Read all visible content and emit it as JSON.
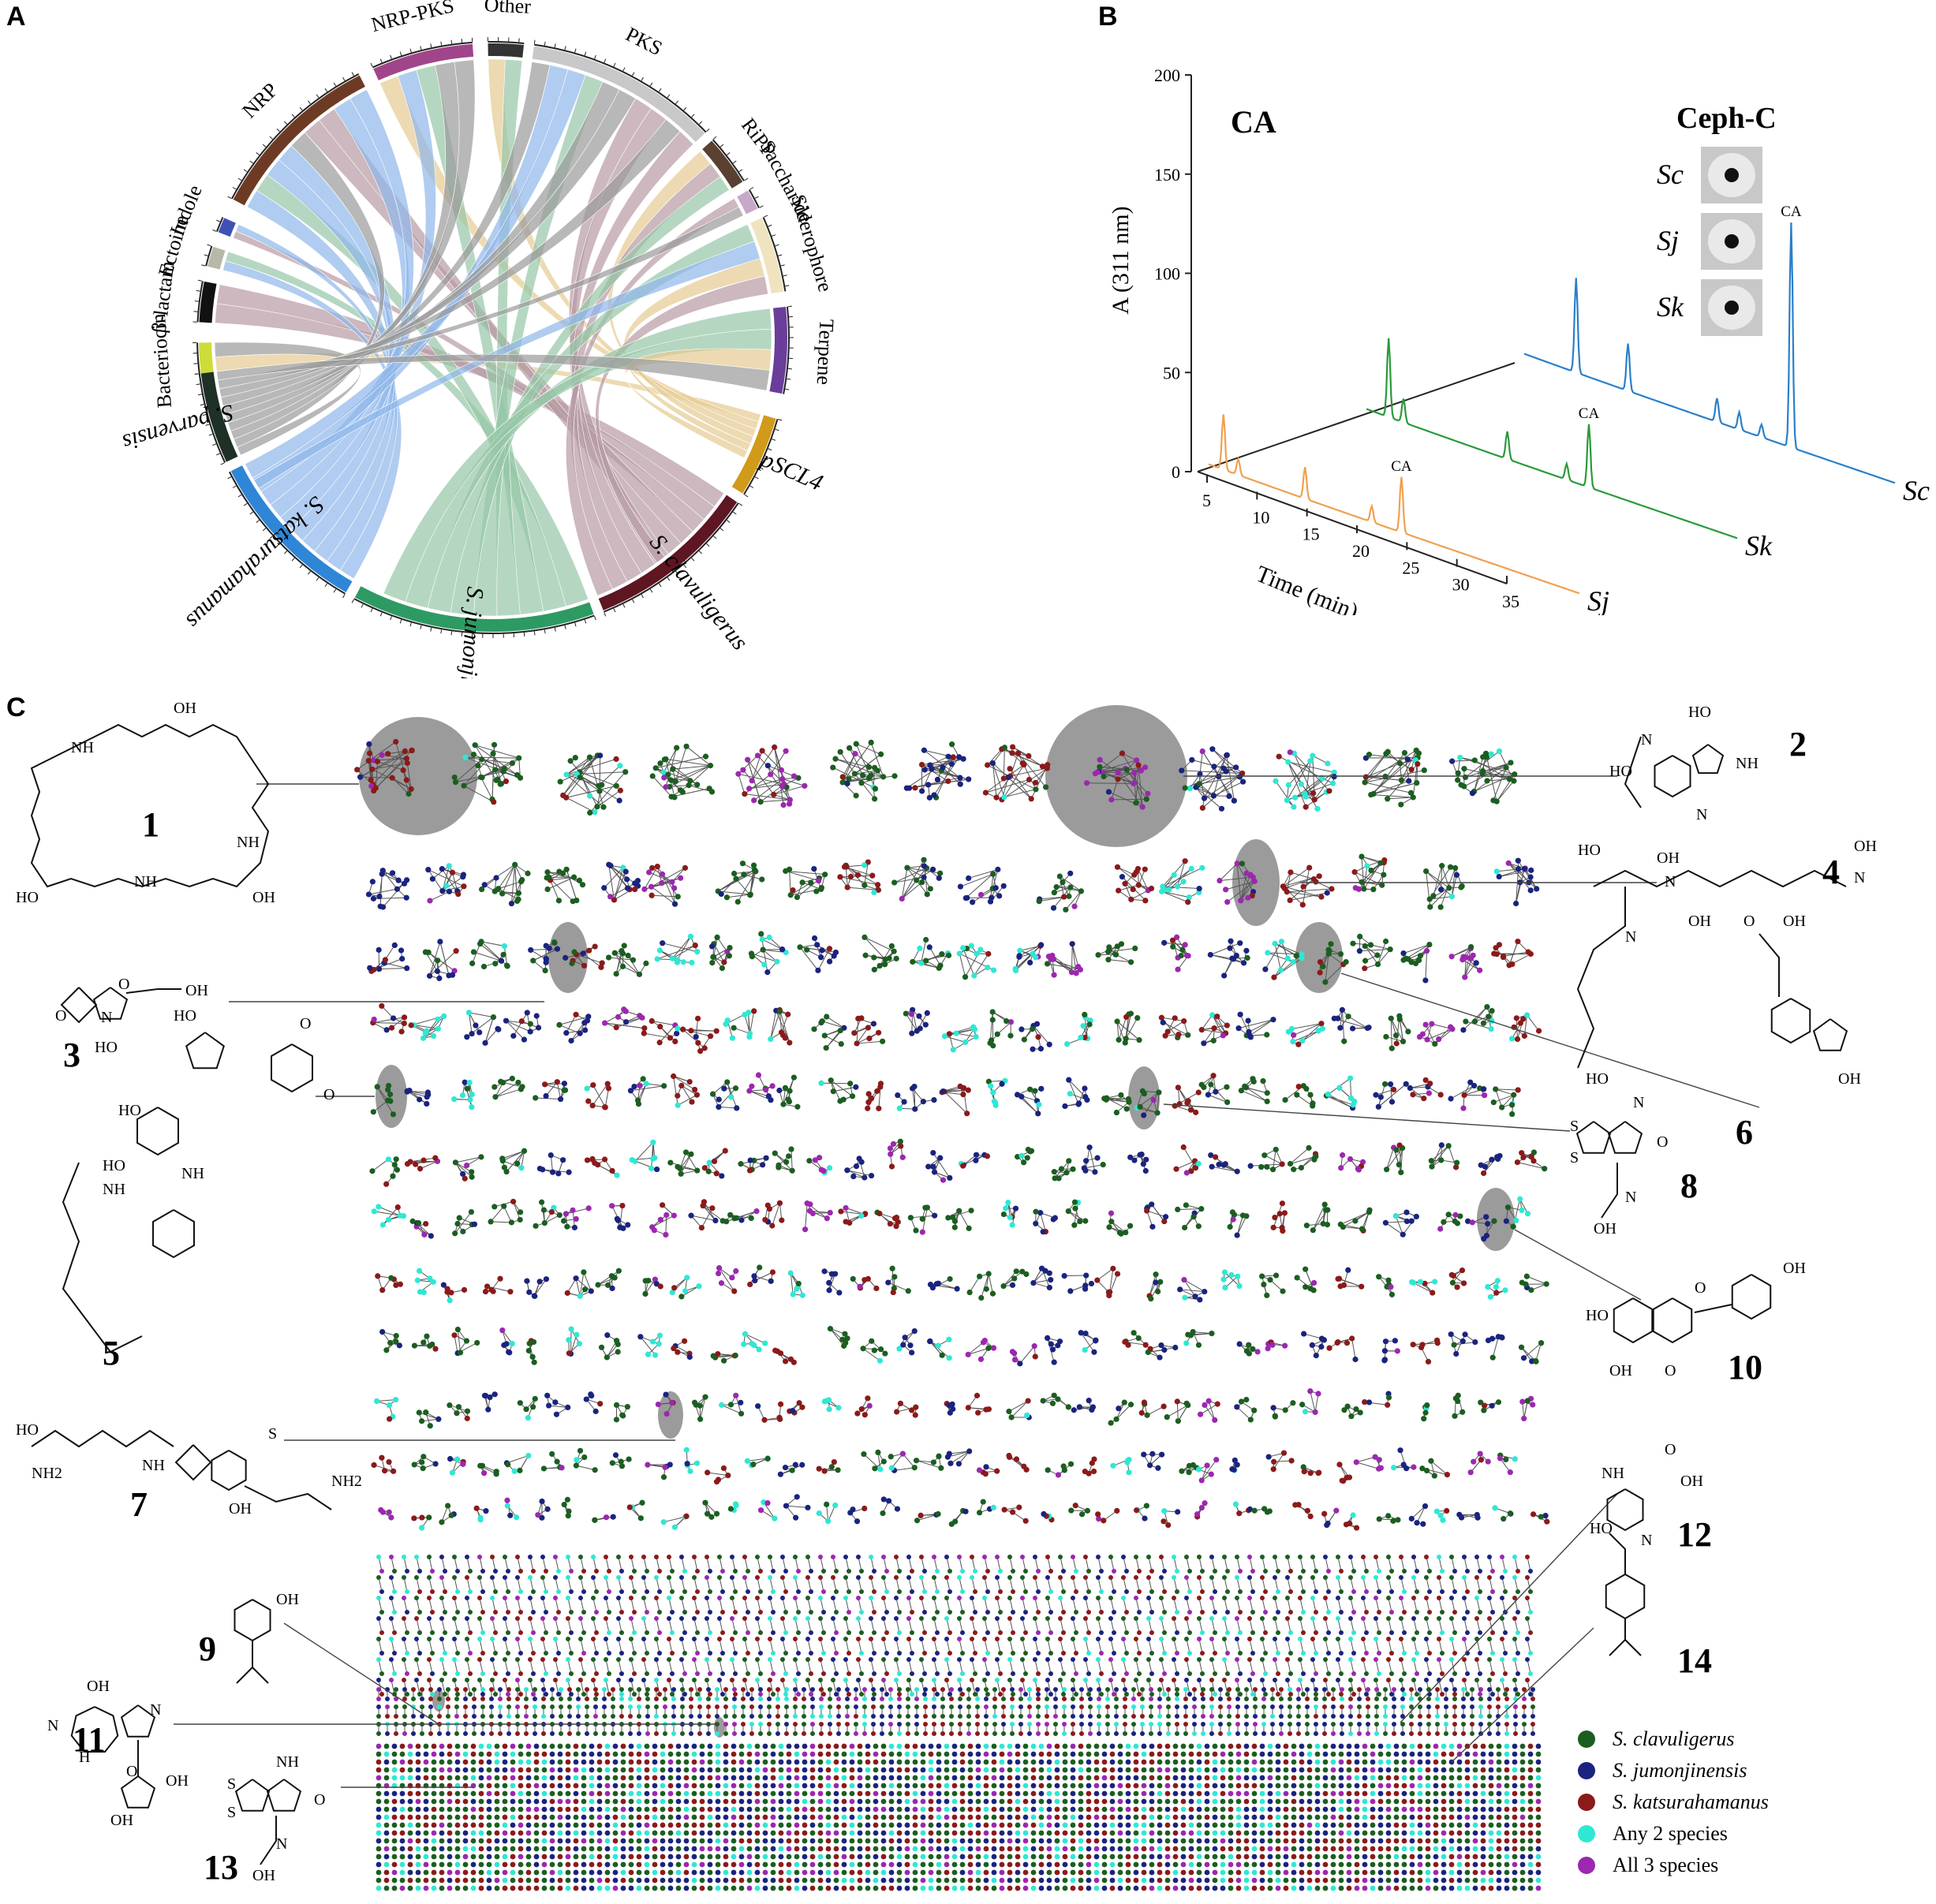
{
  "panels": {
    "a": "A",
    "b": "B",
    "c": "C"
  },
  "chord": {
    "bgc_classes": [
      {
        "label": "Bacteriocin",
        "color": "#cddc39"
      },
      {
        "label": "β-lactam",
        "color": "#111111"
      },
      {
        "label": "Ectoine",
        "color": "#b8b8a8"
      },
      {
        "label": "Indole",
        "color": "#3f51b5"
      },
      {
        "label": "NRP",
        "color": "#6d3b24"
      },
      {
        "label": "NRP-PKS",
        "color": "#a0458a"
      },
      {
        "label": "Other",
        "color": "#333333"
      },
      {
        "label": "PKS",
        "color": "#c8c8c8"
      },
      {
        "label": "RiPP",
        "color": "#5a4030"
      },
      {
        "label": "Saccharide",
        "color": "#c7a8c9"
      },
      {
        "label": "Siderophore",
        "color": "#efe3c0"
      },
      {
        "label": "Terpene",
        "color": "#6a3d9a"
      }
    ],
    "species": [
      {
        "label": "S. parvensis",
        "color": "#1f3026"
      },
      {
        "label": "S. katsurahamanus",
        "color": "#2f86d6"
      },
      {
        "label": "S. jumonjinensis",
        "color": "#2e9a63"
      },
      {
        "label": "S. clavuligerus",
        "color": "#5e1622"
      },
      {
        "label": "pSCL4",
        "color": "#d19a1a"
      }
    ],
    "ticks": [
      "0",
      "10",
      "20",
      "30",
      "40"
    ]
  },
  "hplc": {
    "y_label": "A (311 nm)",
    "y_ticks": [
      "0",
      "50",
      "100",
      "150",
      "200"
    ],
    "x_label": "Time (min)",
    "x_ticks": [
      "5",
      "10",
      "15",
      "20",
      "25",
      "30",
      "35"
    ],
    "title": "CA",
    "peak_label": "CA",
    "traces": [
      {
        "label": "Sc",
        "color": "#2a7fc9"
      },
      {
        "label": "Sk",
        "color": "#2a9a3a"
      },
      {
        "label": "Sj",
        "color": "#f0a050"
      }
    ]
  },
  "ceph": {
    "title": "Ceph-C",
    "rows": [
      "Sc",
      "Sj",
      "Sk"
    ]
  },
  "network": {
    "compounds": [
      "1",
      "2",
      "3",
      "4",
      "5",
      "6",
      "7",
      "8",
      "9",
      "10",
      "11",
      "12",
      "13",
      "14"
    ],
    "legend": [
      {
        "label": "S. clavuligerus",
        "color": "#1b5e20",
        "italic": true
      },
      {
        "label": "S. jumonjinensis",
        "color": "#1a237e",
        "italic": true
      },
      {
        "label": "S. katsurahamanus",
        "color": "#8b1a1a",
        "italic": true
      },
      {
        "label": "Any 2 species",
        "color": "#2ee8d4",
        "italic": false
      },
      {
        "label": "All 3 species",
        "color": "#9c27b0",
        "italic": false
      }
    ]
  },
  "structures": {
    "nh": "NH",
    "oh": "OH",
    "ho": "HO",
    "o": "O",
    "n": "N",
    "s": "S",
    "h": "H",
    "nh2": "NH2",
    "h2n": "NH2",
    "hoh": "HO"
  }
}
